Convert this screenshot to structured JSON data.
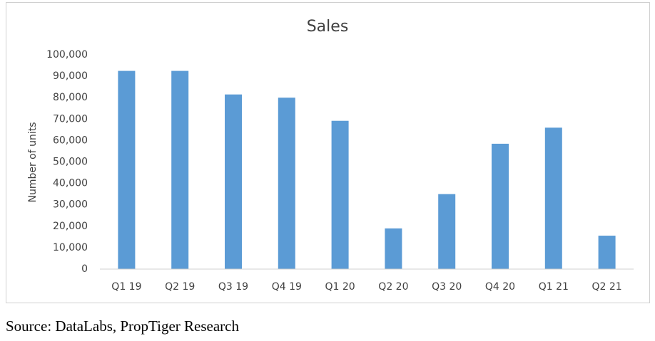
{
  "chart_data": {
    "type": "bar",
    "title": "Sales",
    "y_label": "Number of units",
    "categories": [
      "Q1 19",
      "Q2 19",
      "Q3 19",
      "Q4 19",
      "Q1 20",
      "Q2 20",
      "Q3 20",
      "Q4 20",
      "Q1 21",
      "Q2 21"
    ],
    "values": [
      92500,
      92500,
      81500,
      80000,
      69200,
      19000,
      35000,
      58500,
      66000,
      15600
    ],
    "color": "#5b9bd5",
    "ylim": [
      0,
      100000
    ],
    "yticks": [
      0,
      {
        "value": 10000,
        "label": "10,000"
      },
      {
        "value": 20000,
        "label": "20,000"
      },
      {
        "value": 30000,
        "label": "30,000"
      },
      {
        "value": 40000,
        "label": "40,000"
      },
      {
        "value": 50000,
        "label": "50,000"
      },
      {
        "value": 60000,
        "label": "60,000"
      },
      {
        "value": 70000,
        "label": "70,000"
      },
      {
        "value": 80000,
        "label": "80,000"
      },
      {
        "value": 90000,
        "label": "90,000"
      },
      {
        "value": 100000,
        "label": "100,000"
      }
    ],
    "grid": false,
    "source": "Source: DataLabs, PropTiger Research"
  }
}
